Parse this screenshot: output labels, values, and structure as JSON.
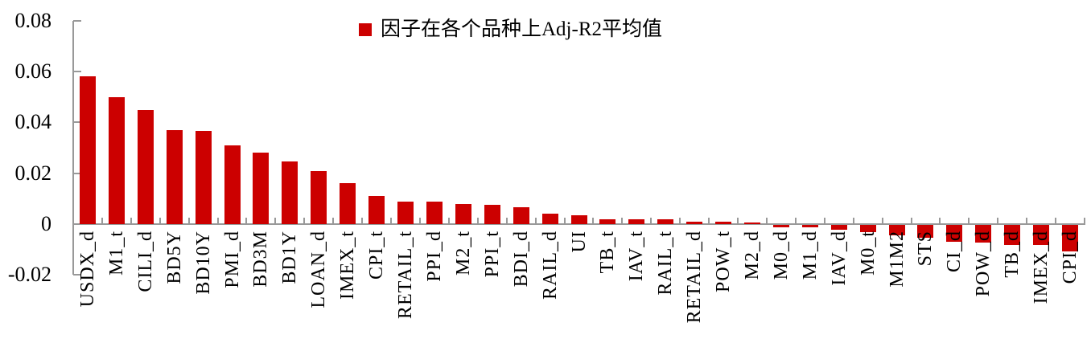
{
  "chart_data": {
    "type": "bar",
    "title": "",
    "legend": "因子在各个品种上Adj-R2平均值",
    "legend_position": "top-center",
    "categories": [
      "USDX_d",
      "M1_t",
      "CILI_d",
      "BD5Y",
      "BD10Y",
      "PMI_d",
      "BD3M",
      "BD1Y",
      "LOAN_d",
      "IMEX_t",
      "CPI_t",
      "RETAIL_t",
      "PPI_d",
      "M2_t",
      "PPI_t",
      "BDI_d",
      "RAIL_d",
      "UI",
      "TB_t",
      "IAV_t",
      "RAIL_t",
      "RETAIL_d",
      "POW_t",
      "M2_d",
      "M0_d",
      "M1_d",
      "IAV_d",
      "M0_t",
      "M1M2",
      "STS",
      "CI_d",
      "POW_d",
      "TB_d",
      "IMEX_d",
      "CPI_d"
    ],
    "values": [
      0.058,
      0.05,
      0.045,
      0.037,
      0.0365,
      0.031,
      0.028,
      0.0245,
      0.021,
      0.016,
      0.011,
      0.009,
      0.009,
      0.008,
      0.0075,
      0.0065,
      0.004,
      0.0035,
      0.002,
      0.002,
      0.002,
      0.001,
      0.001,
      0.0005,
      -0.001,
      -0.001,
      -0.002,
      -0.003,
      -0.004,
      -0.005,
      -0.0065,
      -0.007,
      -0.008,
      -0.008,
      -0.0105
    ],
    "xlabel": "",
    "ylabel": "",
    "ylim": [
      -0.02,
      0.08
    ],
    "yticks": [
      0.08,
      0.06,
      0.04,
      0.02,
      0,
      -0.02
    ],
    "ytick_labels": [
      "0.08",
      "0.06",
      "0.04",
      "0.02",
      "0",
      "-0.02"
    ],
    "grid": false,
    "bar_color": "#CC0000",
    "axis_color": "#999999",
    "text_color": "#000000"
  }
}
